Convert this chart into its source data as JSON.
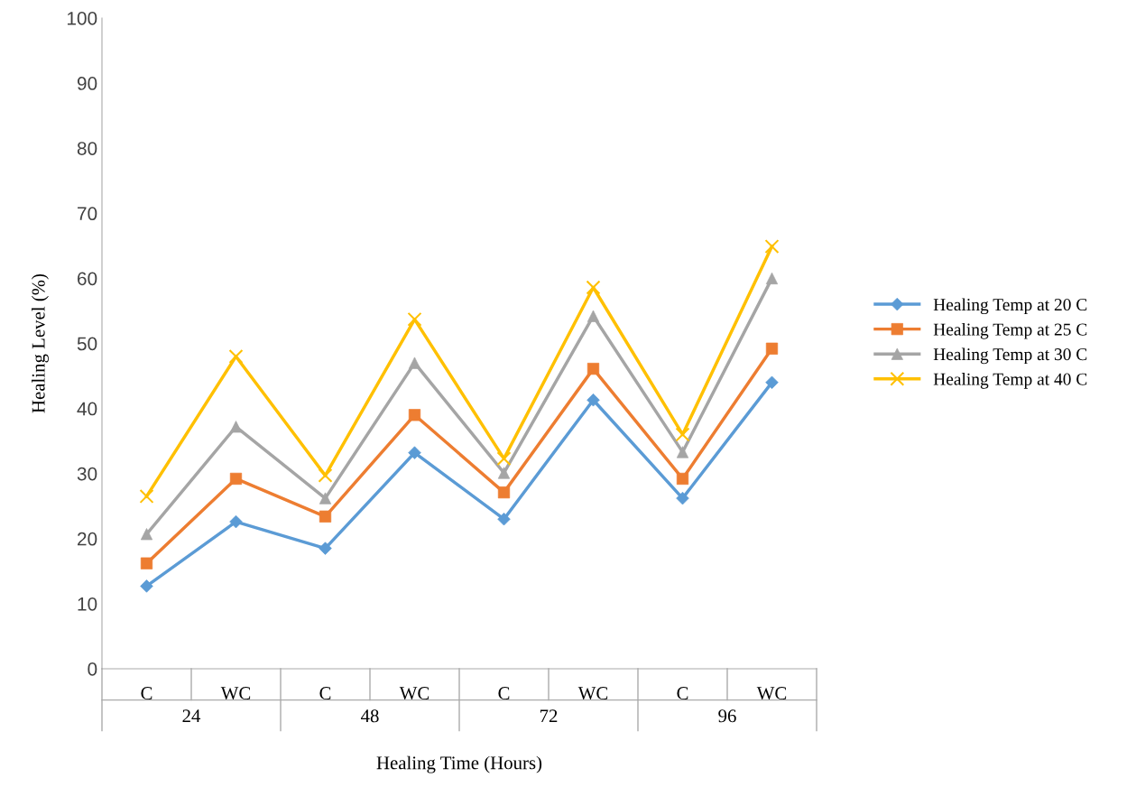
{
  "chart_data": {
    "type": "line",
    "xlabel": "Healing Time (Hours)",
    "ylabel": "Healing Level (%)",
    "categories": [
      "C",
      "WC",
      "C",
      "WC",
      "C",
      "WC",
      "C",
      "WC"
    ],
    "annotations": [
      "24",
      "48",
      "72",
      "96"
    ],
    "series": [
      {
        "name": "Healing Temp at 20 C",
        "color": "#5b9bd5",
        "marker": "diamond",
        "values": [
          12.7,
          22.6,
          18.5,
          33.2,
          23.0,
          41.3,
          26.2,
          44.0
        ]
      },
      {
        "name": "Healing Temp at 25 C",
        "color": "#ed7d31",
        "marker": "square",
        "values": [
          16.2,
          29.2,
          23.4,
          39.0,
          27.1,
          46.1,
          29.2,
          49.2
        ]
      },
      {
        "name": "Healing Temp at 30 C",
        "color": "#a5a5a5",
        "marker": "triangle",
        "values": [
          20.7,
          37.2,
          26.2,
          47.0,
          30.1,
          54.2,
          33.3,
          60.0
        ]
      },
      {
        "name": "Healing Temp at 40 C",
        "color": "#ffc000",
        "marker": "cross",
        "values": [
          26.5,
          48.0,
          29.7,
          53.7,
          32.3,
          58.6,
          36.0,
          64.9
        ]
      }
    ],
    "ylim": [
      0,
      100
    ],
    "yticks": [
      0,
      10,
      20,
      30,
      40,
      50,
      60,
      70,
      80,
      90,
      100
    ],
    "grid": false,
    "legend": "right",
    "line_style": "solid"
  }
}
